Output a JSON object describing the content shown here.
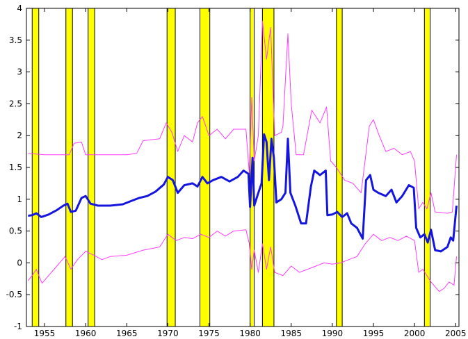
{
  "chart_data": {
    "type": "line",
    "title": "",
    "xlabel": "",
    "ylabel": "",
    "xlim": [
      1952.8,
      2005.4
    ],
    "ylim": [
      -1,
      4
    ],
    "grid": false,
    "x_ticks": [
      1955,
      1960,
      1965,
      1970,
      1975,
      1980,
      1985,
      1990,
      1995,
      2000,
      2005
    ],
    "y_ticks": [
      -1,
      -0.5,
      0,
      0.5,
      1,
      1.5,
      2,
      2.5,
      3,
      3.5,
      4
    ],
    "x_tick_labels": [
      "1955",
      "1960",
      "1965",
      "1970",
      "1975",
      "1980",
      "1985",
      "1990",
      "1995",
      "2000",
      "2005"
    ],
    "y_tick_labels": [
      "-1",
      "-0.5",
      "0",
      "0.5",
      "1",
      "1.5",
      "2",
      "2.5",
      "3",
      "3.5",
      "4"
    ],
    "colors": {
      "estimate": "#1515e0",
      "bands": "#ff3cff",
      "recession": "#ffff00",
      "recession_edge": "#000000",
      "axis": "#000000"
    },
    "recessions": [
      [
        1953.5,
        1954.3
      ],
      [
        1957.6,
        1958.4
      ],
      [
        1960.3,
        1961.1
      ],
      [
        1969.9,
        1970.9
      ],
      [
        1973.9,
        1975.1
      ],
      [
        1980.0,
        1980.5
      ],
      [
        1981.5,
        1982.9
      ],
      [
        1990.5,
        1991.2
      ],
      [
        2001.2,
        2001.9
      ]
    ],
    "series": [
      {
        "style": "thick",
        "points": [
          [
            1953.0,
            0.74
          ],
          [
            1953.5,
            0.75
          ],
          [
            1954.0,
            0.78
          ],
          [
            1954.6,
            0.72
          ],
          [
            1955.5,
            0.76
          ],
          [
            1956.5,
            0.83
          ],
          [
            1957.3,
            0.9
          ],
          [
            1957.8,
            0.93
          ],
          [
            1958.2,
            0.8
          ],
          [
            1958.8,
            0.82
          ],
          [
            1959.5,
            1.02
          ],
          [
            1960.0,
            1.05
          ],
          [
            1960.6,
            0.93
          ],
          [
            1961.5,
            0.9
          ],
          [
            1963.0,
            0.9
          ],
          [
            1964.5,
            0.92
          ],
          [
            1965.5,
            0.97
          ],
          [
            1966.5,
            1.02
          ],
          [
            1967.5,
            1.05
          ],
          [
            1968.5,
            1.12
          ],
          [
            1969.5,
            1.23
          ],
          [
            1970.0,
            1.35
          ],
          [
            1970.6,
            1.3
          ],
          [
            1971.2,
            1.1
          ],
          [
            1972.0,
            1.22
          ],
          [
            1973.0,
            1.25
          ],
          [
            1973.6,
            1.2
          ],
          [
            1974.2,
            1.35
          ],
          [
            1974.8,
            1.25
          ],
          [
            1975.5,
            1.3
          ],
          [
            1976.5,
            1.35
          ],
          [
            1977.5,
            1.28
          ],
          [
            1978.5,
            1.35
          ],
          [
            1979.2,
            1.45
          ],
          [
            1979.8,
            1.4
          ],
          [
            1980.0,
            0.88
          ],
          [
            1980.3,
            1.65
          ],
          [
            1980.5,
            0.9
          ],
          [
            1981.0,
            1.1
          ],
          [
            1981.4,
            1.25
          ],
          [
            1981.7,
            2.02
          ],
          [
            1982.0,
            1.9
          ],
          [
            1982.3,
            1.3
          ],
          [
            1982.6,
            1.95
          ],
          [
            1982.9,
            1.65
          ],
          [
            1983.2,
            0.95
          ],
          [
            1983.8,
            1.0
          ],
          [
            1984.3,
            1.1
          ],
          [
            1984.6,
            1.95
          ],
          [
            1984.9,
            1.1
          ],
          [
            1985.5,
            0.9
          ],
          [
            1986.2,
            0.62
          ],
          [
            1986.8,
            0.62
          ],
          [
            1987.4,
            1.2
          ],
          [
            1987.8,
            1.45
          ],
          [
            1988.5,
            1.38
          ],
          [
            1989.2,
            1.45
          ],
          [
            1989.4,
            0.75
          ],
          [
            1990.0,
            0.76
          ],
          [
            1990.6,
            0.8
          ],
          [
            1991.2,
            0.72
          ],
          [
            1991.8,
            0.78
          ],
          [
            1992.3,
            0.62
          ],
          [
            1993.0,
            0.55
          ],
          [
            1993.7,
            0.38
          ],
          [
            1994.1,
            1.3
          ],
          [
            1994.6,
            1.38
          ],
          [
            1995.0,
            1.15
          ],
          [
            1995.6,
            1.1
          ],
          [
            1996.5,
            1.05
          ],
          [
            1997.2,
            1.15
          ],
          [
            1997.8,
            0.95
          ],
          [
            1998.5,
            1.05
          ],
          [
            1999.3,
            1.22
          ],
          [
            1999.9,
            1.18
          ],
          [
            2000.2,
            0.55
          ],
          [
            2000.7,
            0.4
          ],
          [
            2001.2,
            0.45
          ],
          [
            2001.6,
            0.32
          ],
          [
            2002.0,
            0.52
          ],
          [
            2002.5,
            0.2
          ],
          [
            2003.2,
            0.18
          ],
          [
            2004.0,
            0.25
          ],
          [
            2004.4,
            0.4
          ],
          [
            2004.7,
            0.35
          ],
          [
            2005.1,
            0.9
          ]
        ]
      },
      {
        "style": "thin",
        "points": [
          [
            1953.0,
            1.72
          ],
          [
            1955.0,
            1.7
          ],
          [
            1958.0,
            1.7
          ],
          [
            1958.6,
            1.88
          ],
          [
            1959.5,
            1.9
          ],
          [
            1960.0,
            1.7
          ],
          [
            1965.0,
            1.7
          ],
          [
            1966.2,
            1.72
          ],
          [
            1967.0,
            1.92
          ],
          [
            1969.0,
            1.95
          ],
          [
            1969.8,
            2.2
          ],
          [
            1970.5,
            2.05
          ],
          [
            1971.2,
            1.75
          ],
          [
            1972.0,
            2.0
          ],
          [
            1973.0,
            1.9
          ],
          [
            1973.6,
            2.2
          ],
          [
            1974.2,
            2.3
          ],
          [
            1975.0,
            2.0
          ],
          [
            1976.0,
            2.1
          ],
          [
            1977.0,
            1.95
          ],
          [
            1978.0,
            2.1
          ],
          [
            1979.5,
            2.1
          ],
          [
            1979.9,
            1.4
          ],
          [
            1980.2,
            2.6
          ],
          [
            1980.5,
            1.6
          ],
          [
            1981.0,
            2.0
          ],
          [
            1981.5,
            3.8
          ],
          [
            1982.0,
            3.2
          ],
          [
            1982.5,
            3.7
          ],
          [
            1983.0,
            2.0
          ],
          [
            1983.8,
            2.05
          ],
          [
            1984.0,
            2.15
          ],
          [
            1984.6,
            3.6
          ],
          [
            1985.0,
            2.5
          ],
          [
            1985.6,
            1.7
          ],
          [
            1986.5,
            1.7
          ],
          [
            1987.5,
            2.4
          ],
          [
            1988.5,
            2.2
          ],
          [
            1989.3,
            2.45
          ],
          [
            1989.8,
            1.6
          ],
          [
            1990.5,
            1.5
          ],
          [
            1991.5,
            1.3
          ],
          [
            1992.5,
            1.25
          ],
          [
            1993.5,
            1.1
          ],
          [
            1994.5,
            2.15
          ],
          [
            1995.0,
            2.25
          ],
          [
            1995.7,
            2.0
          ],
          [
            1996.5,
            1.75
          ],
          [
            1997.5,
            1.8
          ],
          [
            1998.5,
            1.7
          ],
          [
            1999.5,
            1.75
          ],
          [
            2000.0,
            1.6
          ],
          [
            2000.5,
            0.85
          ],
          [
            2001.0,
            0.95
          ],
          [
            2001.5,
            0.85
          ],
          [
            2002.0,
            1.1
          ],
          [
            2002.5,
            0.8
          ],
          [
            2004.0,
            0.78
          ],
          [
            2004.6,
            0.8
          ],
          [
            2005.1,
            1.7
          ]
        ]
      },
      {
        "style": "thin",
        "points": [
          [
            1953.0,
            -0.28
          ],
          [
            1953.5,
            -0.2
          ],
          [
            1954.0,
            -0.1
          ],
          [
            1954.7,
            -0.32
          ],
          [
            1955.5,
            -0.2
          ],
          [
            1956.5,
            -0.05
          ],
          [
            1957.5,
            0.1
          ],
          [
            1958.2,
            -0.1
          ],
          [
            1959.0,
            0.05
          ],
          [
            1960.0,
            0.18
          ],
          [
            1961.0,
            0.12
          ],
          [
            1962.0,
            0.05
          ],
          [
            1963.0,
            0.1
          ],
          [
            1965.0,
            0.12
          ],
          [
            1967.0,
            0.2
          ],
          [
            1969.0,
            0.25
          ],
          [
            1970.0,
            0.45
          ],
          [
            1971.0,
            0.35
          ],
          [
            1972.0,
            0.4
          ],
          [
            1973.0,
            0.38
          ],
          [
            1974.0,
            0.45
          ],
          [
            1975.0,
            0.4
          ],
          [
            1976.0,
            0.5
          ],
          [
            1977.0,
            0.42
          ],
          [
            1978.0,
            0.5
          ],
          [
            1979.5,
            0.52
          ],
          [
            1979.9,
            0.3
          ],
          [
            1980.2,
            -0.1
          ],
          [
            1980.5,
            0.2
          ],
          [
            1981.0,
            -0.15
          ],
          [
            1981.5,
            0.3
          ],
          [
            1982.0,
            -0.1
          ],
          [
            1982.5,
            0.25
          ],
          [
            1983.0,
            -0.15
          ],
          [
            1984.0,
            -0.2
          ],
          [
            1985.0,
            -0.05
          ],
          [
            1986.0,
            -0.15
          ],
          [
            1987.0,
            -0.1
          ],
          [
            1988.0,
            -0.05
          ],
          [
            1989.0,
            0.0
          ],
          [
            1990.0,
            -0.02
          ],
          [
            1991.0,
            0.0
          ],
          [
            1992.0,
            0.05
          ],
          [
            1993.0,
            0.1
          ],
          [
            1994.0,
            0.3
          ],
          [
            1995.0,
            0.45
          ],
          [
            1996.0,
            0.35
          ],
          [
            1997.0,
            0.4
          ],
          [
            1998.0,
            0.35
          ],
          [
            1999.0,
            0.42
          ],
          [
            2000.0,
            0.35
          ],
          [
            2000.5,
            -0.15
          ],
          [
            2001.0,
            -0.1
          ],
          [
            2002.0,
            -0.3
          ],
          [
            2003.0,
            -0.45
          ],
          [
            2003.6,
            -0.4
          ],
          [
            2004.2,
            -0.3
          ],
          [
            2004.8,
            -0.35
          ],
          [
            2005.1,
            0.1
          ]
        ]
      }
    ]
  }
}
